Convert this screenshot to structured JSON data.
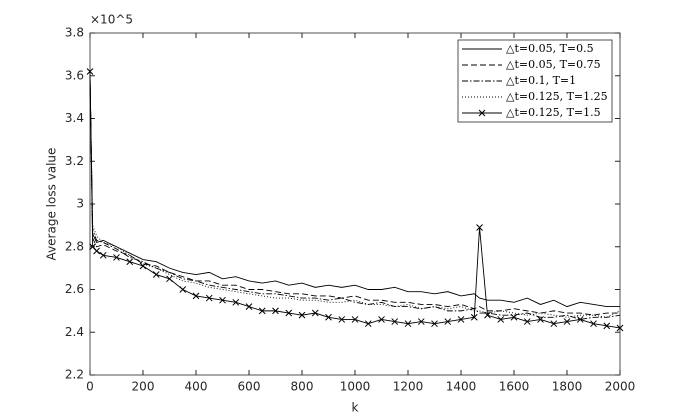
{
  "chart_data": {
    "type": "line",
    "xlabel": "k",
    "ylabel": "Average loss value",
    "y_exponent": "×10^5",
    "x": [
      0,
      10,
      25,
      50,
      100,
      150,
      200,
      250,
      300,
      350,
      400,
      450,
      500,
      550,
      600,
      650,
      700,
      750,
      800,
      850,
      900,
      950,
      1000,
      1050,
      1100,
      1150,
      1200,
      1250,
      1300,
      1350,
      1400,
      1450,
      1470,
      1500,
      1550,
      1600,
      1650,
      1700,
      1750,
      1800,
      1850,
      1900,
      1950,
      2000
    ],
    "series": [
      {
        "name": "△t=0.05, T=0.5",
        "color": "#000000",
        "linestyle": "solid",
        "values": [
          3.6,
          2.86,
          2.82,
          2.83,
          2.8,
          2.77,
          2.74,
          2.73,
          2.7,
          2.68,
          2.67,
          2.68,
          2.65,
          2.66,
          2.64,
          2.63,
          2.64,
          2.62,
          2.63,
          2.61,
          2.62,
          2.61,
          2.62,
          2.6,
          2.6,
          2.61,
          2.59,
          2.59,
          2.58,
          2.59,
          2.57,
          2.58,
          2.56,
          2.55,
          2.55,
          2.54,
          2.56,
          2.53,
          2.55,
          2.52,
          2.54,
          2.53,
          2.52,
          2.52
        ]
      },
      {
        "name": "△t=0.05, T=0.75",
        "color": "#000000",
        "linestyle": "dashed",
        "values": [
          3.6,
          2.84,
          2.8,
          2.81,
          2.78,
          2.76,
          2.72,
          2.71,
          2.68,
          2.66,
          2.64,
          2.64,
          2.62,
          2.62,
          2.6,
          2.6,
          2.59,
          2.58,
          2.58,
          2.57,
          2.57,
          2.56,
          2.57,
          2.55,
          2.55,
          2.54,
          2.54,
          2.53,
          2.53,
          2.52,
          2.53,
          2.51,
          2.52,
          2.5,
          2.5,
          2.51,
          2.5,
          2.49,
          2.5,
          2.49,
          2.49,
          2.48,
          2.49,
          2.49
        ]
      },
      {
        "name": "△t=0.1, T=1",
        "color": "#000000",
        "linestyle": "dashdot",
        "values": [
          3.6,
          2.88,
          2.83,
          2.82,
          2.79,
          2.75,
          2.73,
          2.7,
          2.68,
          2.65,
          2.64,
          2.62,
          2.61,
          2.6,
          2.59,
          2.58,
          2.58,
          2.57,
          2.56,
          2.56,
          2.55,
          2.56,
          2.54,
          2.53,
          2.54,
          2.52,
          2.52,
          2.51,
          2.52,
          2.5,
          2.5,
          2.51,
          2.49,
          2.49,
          2.48,
          2.48,
          2.49,
          2.47,
          2.47,
          2.48,
          2.46,
          2.47,
          2.47,
          2.48
        ]
      },
      {
        "name": "△t=0.125, T=1.25",
        "color": "#000000",
        "linestyle": "dotted",
        "values": [
          3.6,
          2.9,
          2.85,
          2.82,
          2.8,
          2.76,
          2.72,
          2.7,
          2.67,
          2.64,
          2.63,
          2.61,
          2.6,
          2.59,
          2.58,
          2.57,
          2.56,
          2.56,
          2.55,
          2.55,
          2.54,
          2.54,
          2.55,
          2.53,
          2.53,
          2.52,
          2.53,
          2.51,
          2.52,
          2.51,
          2.52,
          2.5,
          2.5,
          2.49,
          2.5,
          2.49,
          2.48,
          2.49,
          2.48,
          2.47,
          2.48,
          2.48,
          2.47,
          2.5
        ]
      },
      {
        "name": "△t=0.125, T=1.5",
        "color": "#000000",
        "linestyle": "solid",
        "marker": "x",
        "values": [
          3.62,
          2.8,
          2.78,
          2.76,
          2.75,
          2.73,
          2.71,
          2.67,
          2.65,
          2.6,
          2.57,
          2.56,
          2.55,
          2.54,
          2.52,
          2.5,
          2.5,
          2.49,
          2.48,
          2.49,
          2.47,
          2.46,
          2.46,
          2.44,
          2.46,
          2.45,
          2.44,
          2.45,
          2.44,
          2.45,
          2.46,
          2.47,
          2.89,
          2.48,
          2.46,
          2.47,
          2.45,
          2.46,
          2.44,
          2.45,
          2.46,
          2.44,
          2.43,
          2.42
        ]
      }
    ],
    "xlim": [
      0,
      2000
    ],
    "xticks": [
      0,
      200,
      400,
      600,
      800,
      1000,
      1200,
      1400,
      1600,
      1800,
      2000
    ],
    "ylim": [
      2.2,
      3.8
    ],
    "yticks": [
      2.2,
      2.4,
      2.6,
      2.8,
      3,
      3.2,
      3.4,
      3.6,
      3.8
    ],
    "grid": false,
    "legend": "upper right"
  }
}
